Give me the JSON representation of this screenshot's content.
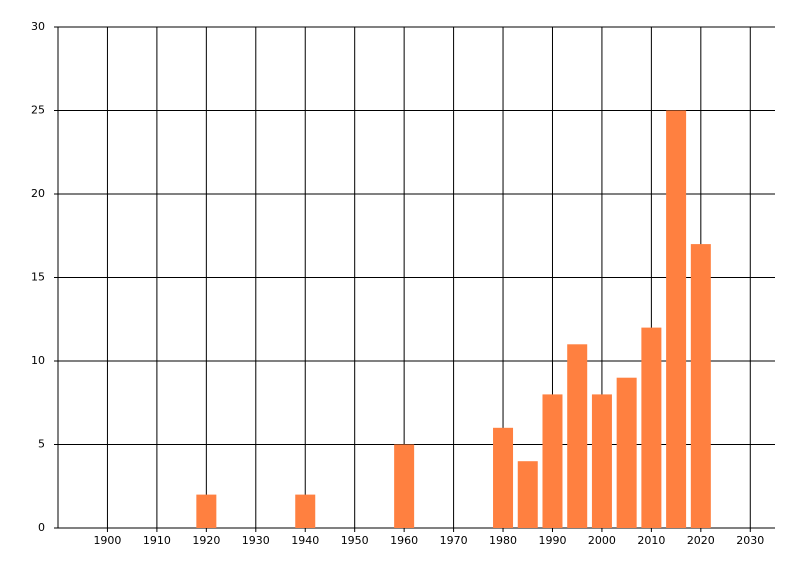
{
  "chart_data": {
    "type": "bar",
    "x": [
      1920,
      1940,
      1960,
      1980,
      1985,
      1990,
      1995,
      2000,
      2005,
      2010,
      2015,
      2020
    ],
    "values": [
      2,
      2,
      5,
      6,
      4,
      8,
      11,
      8,
      9,
      12,
      25,
      17
    ],
    "color": "#ff8040",
    "xlim": [
      1890,
      2035
    ],
    "xticks": [
      1900,
      1910,
      1920,
      1930,
      1940,
      1950,
      1960,
      1970,
      1980,
      1990,
      2000,
      2010,
      2020,
      2030
    ],
    "ylim": [
      0,
      30
    ],
    "yticks": [
      0,
      5,
      10,
      15,
      20,
      25,
      30
    ],
    "grid": true
  }
}
